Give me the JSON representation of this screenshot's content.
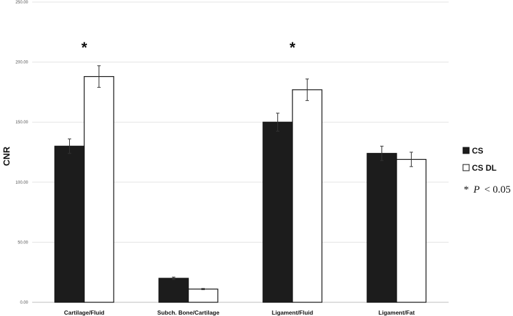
{
  "chart_data": {
    "type": "bar",
    "title": "",
    "xlabel": "",
    "ylabel": "CNR",
    "ylim": [
      0,
      250
    ],
    "yticks": [
      "0.00",
      "50.00",
      "100.00",
      "150.00",
      "200.00",
      "250.00"
    ],
    "grid": true,
    "legend_position": "right",
    "categories": [
      "Cartilage/Fluid",
      "Subch. Bone/Cartilage",
      "Ligament/Fluid",
      "Ligament/Fat"
    ],
    "series": [
      {
        "name": "CS",
        "color": "#1c1c1c",
        "values": [
          130,
          20,
          150,
          124
        ],
        "errors": [
          6,
          1,
          7.5,
          6
        ]
      },
      {
        "name": "CS DL",
        "color": "#ffffff",
        "values": [
          188,
          11,
          177,
          119
        ],
        "errors": [
          9,
          0.5,
          9,
          6
        ]
      }
    ],
    "significance_marks": [
      "*",
      "",
      "*",
      ""
    ],
    "significance_note": {
      "symbol": "*",
      "variable": "P",
      "relation": "< 0.05"
    }
  }
}
